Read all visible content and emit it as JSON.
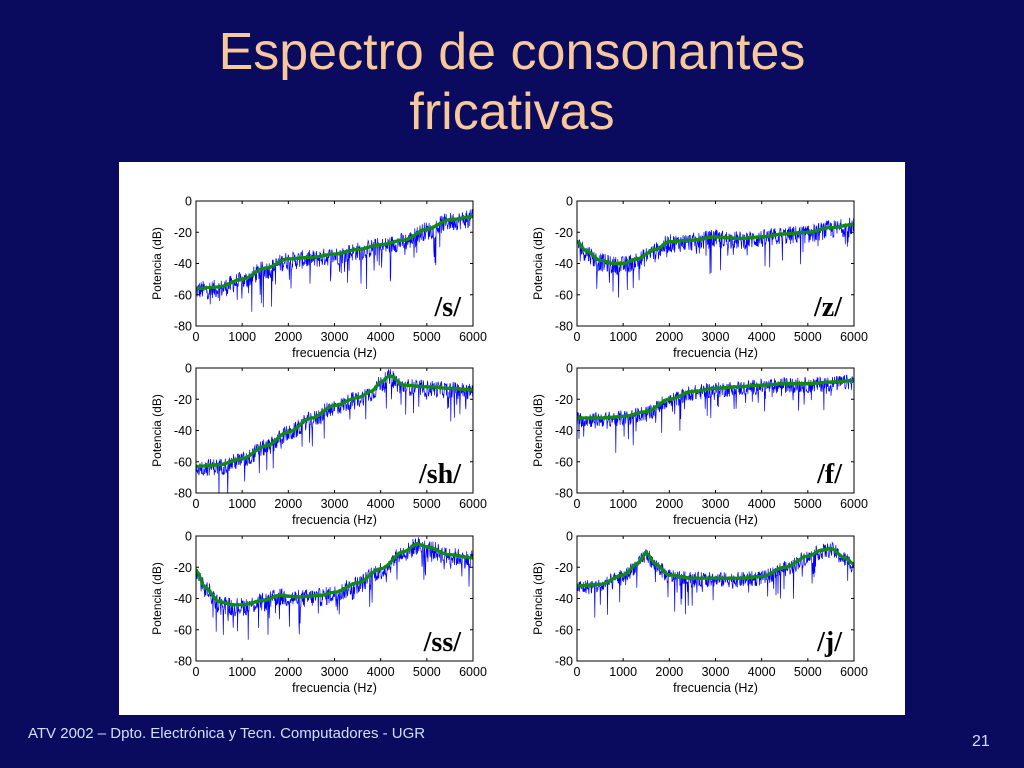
{
  "slide": {
    "title_line1": "Espectro de consonantes",
    "title_line2": "fricativas",
    "footer": "ATV 2002 – Dpto. Electrónica y Tecn. Computadores - UGR",
    "page_number": "21"
  },
  "colors": {
    "background": "#0a0a5e",
    "title": "#f7c89b",
    "footer": "#cfe0ff",
    "raw_spectrum": "#0000ff",
    "smoothed_envelope": "#118a11"
  },
  "chart_data": [
    {
      "type": "line",
      "label": "/s/",
      "xlabel": "frecuencia (Hz)",
      "ylabel": "Potencia (dB)",
      "xlim": [
        0,
        6000
      ],
      "ylim": [
        -80,
        0
      ],
      "xticks": [
        0,
        1000,
        2000,
        3000,
        4000,
        5000,
        6000
      ],
      "yticks": [
        0,
        -20,
        -40,
        -60,
        -80
      ],
      "envelope_x": [
        0,
        500,
        1000,
        1500,
        2000,
        2500,
        3000,
        3500,
        4000,
        4500,
        5000,
        5500,
        6000
      ],
      "envelope_y": [
        -56,
        -55,
        -50,
        -43,
        -37,
        -36,
        -34,
        -31,
        -28,
        -25,
        -18,
        -12,
        -10
      ],
      "noise_amplitude": 12
    },
    {
      "type": "line",
      "label": "/z/",
      "xlabel": "frecuencia (Hz)",
      "ylabel": "Potencia (dB)",
      "xlim": [
        0,
        6000
      ],
      "ylim": [
        -80,
        0
      ],
      "xticks": [
        0,
        1000,
        2000,
        3000,
        4000,
        5000,
        6000
      ],
      "yticks": [
        0,
        -20,
        -40,
        -60,
        -80
      ],
      "envelope_x": [
        0,
        200,
        500,
        800,
        1000,
        1300,
        1700,
        2000,
        2500,
        3000,
        3500,
        4000,
        4500,
        5000,
        5500,
        6000
      ],
      "envelope_y": [
        -26,
        -32,
        -38,
        -40,
        -40,
        -37,
        -31,
        -26,
        -25,
        -23,
        -24,
        -23,
        -21,
        -20,
        -17,
        -15
      ],
      "noise_amplitude": 12
    },
    {
      "type": "line",
      "label": "/sh/",
      "xlabel": "frecuencia (Hz)",
      "ylabel": "Potencia (dB)",
      "xlim": [
        0,
        6000
      ],
      "ylim": [
        -80,
        0
      ],
      "xticks": [
        0,
        1000,
        2000,
        3000,
        4000,
        5000,
        6000
      ],
      "yticks": [
        0,
        -20,
        -40,
        -60,
        -80
      ],
      "envelope_x": [
        0,
        500,
        1000,
        1500,
        2000,
        2500,
        3000,
        3500,
        3800,
        4000,
        4200,
        4500,
        5000,
        5500,
        6000
      ],
      "envelope_y": [
        -63,
        -62,
        -58,
        -50,
        -41,
        -32,
        -24,
        -19,
        -15,
        -9,
        -5,
        -11,
        -12,
        -13,
        -14
      ],
      "noise_amplitude": 11
    },
    {
      "type": "line",
      "label": "/f/",
      "xlabel": "frecuencia (Hz)",
      "ylabel": "Potencia (dB)",
      "xlim": [
        0,
        6000
      ],
      "ylim": [
        -80,
        0
      ],
      "xticks": [
        0,
        1000,
        2000,
        3000,
        4000,
        5000,
        6000
      ],
      "yticks": [
        0,
        -20,
        -40,
        -60,
        -80
      ],
      "envelope_x": [
        0,
        500,
        1000,
        1500,
        2000,
        2500,
        3000,
        3500,
        4000,
        4500,
        5000,
        5500,
        6000
      ],
      "envelope_y": [
        -32,
        -32,
        -31,
        -28,
        -20,
        -15,
        -13,
        -12,
        -11,
        -10,
        -10,
        -9,
        -8
      ],
      "noise_amplitude": 10
    },
    {
      "type": "line",
      "label": "/ss/",
      "xlabel": "frecuencia (Hz)",
      "ylabel": "Potencia (dB)",
      "xlim": [
        0,
        6000
      ],
      "ylim": [
        -80,
        0
      ],
      "xticks": [
        0,
        1000,
        2000,
        3000,
        4000,
        5000,
        6000
      ],
      "yticks": [
        0,
        -20,
        -40,
        -60,
        -80
      ],
      "envelope_x": [
        0,
        200,
        500,
        800,
        1000,
        1500,
        1800,
        2200,
        2700,
        3000,
        3500,
        4000,
        4500,
        4800,
        5000,
        5500,
        6000
      ],
      "envelope_y": [
        -22,
        -33,
        -42,
        -44,
        -44,
        -41,
        -38,
        -39,
        -38,
        -36,
        -30,
        -21,
        -10,
        -5,
        -7,
        -12,
        -14
      ],
      "noise_amplitude": 12
    },
    {
      "type": "line",
      "label": "/j/",
      "xlabel": "frecuencia (Hz)",
      "ylabel": "Potencia (dB)",
      "xlim": [
        0,
        6000
      ],
      "ylim": [
        -80,
        0
      ],
      "xticks": [
        0,
        1000,
        2000,
        3000,
        4000,
        5000,
        6000
      ],
      "yticks": [
        0,
        -20,
        -40,
        -60,
        -80
      ],
      "envelope_x": [
        0,
        500,
        1000,
        1300,
        1500,
        1700,
        2000,
        2500,
        3000,
        3500,
        4000,
        4500,
        5000,
        5300,
        5500,
        5800,
        6000
      ],
      "envelope_y": [
        -32,
        -31,
        -25,
        -18,
        -11,
        -18,
        -25,
        -27,
        -27,
        -27,
        -26,
        -20,
        -13,
        -9,
        -8,
        -14,
        -18
      ],
      "noise_amplitude": 10
    }
  ]
}
